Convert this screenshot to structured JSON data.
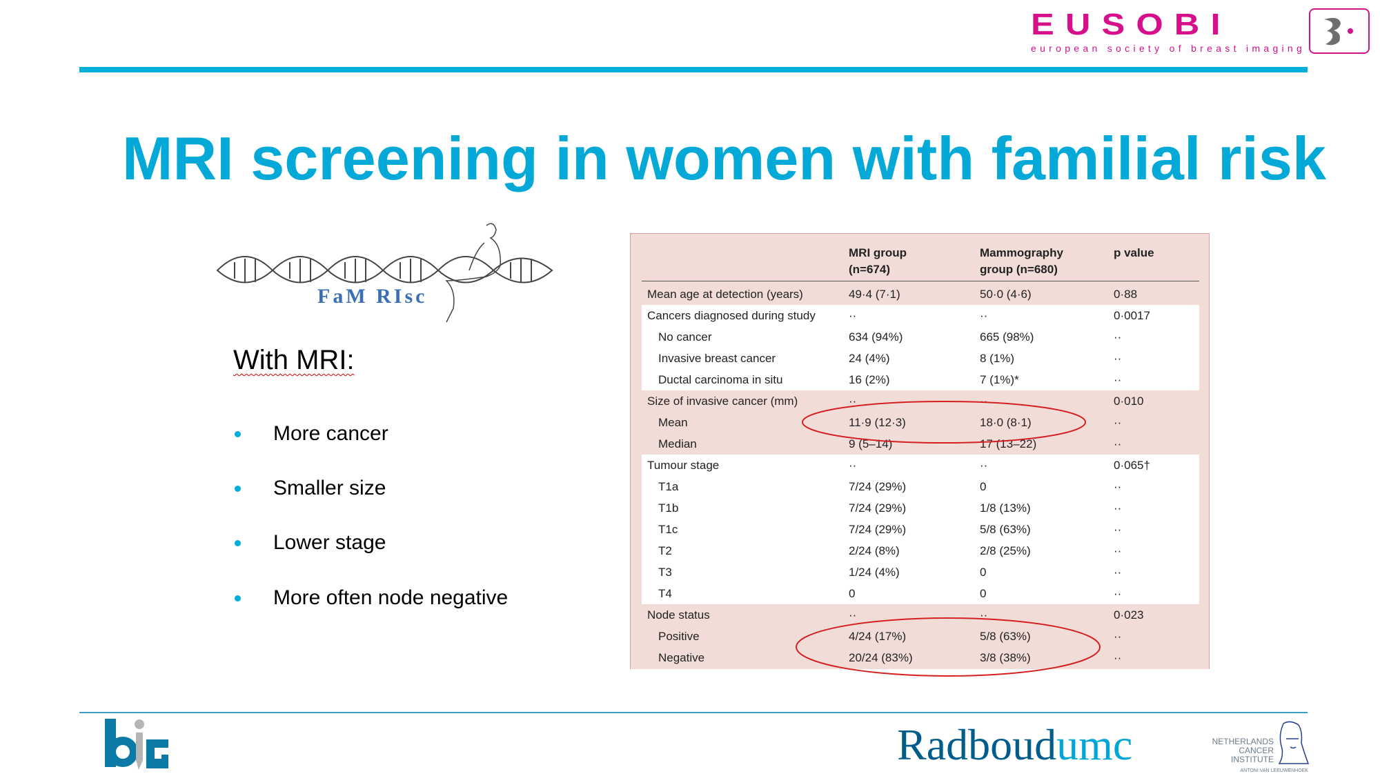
{
  "header": {
    "logo_text": "EUSOBI",
    "logo_subtitle": "european society of breast imaging",
    "title": "MRI screening in women with familial risk"
  },
  "left": {
    "study_logo_text": "FaM RIsc",
    "heading": "With MRI:",
    "bullets": [
      "More cancer",
      "Smaller size",
      "Lower stage",
      "More often node negative"
    ]
  },
  "table": {
    "headers": [
      "",
      "MRI group (n=674)",
      "Mammography group (n=680)",
      "p value"
    ],
    "header_lines": [
      [
        "MRI group",
        "(n=674)"
      ],
      [
        "Mammography",
        "group (n=680)"
      ],
      [
        "p value"
      ]
    ],
    "rows": [
      {
        "label": "Mean age at detection (years)",
        "mri": "49·4 (7·1)",
        "mammo": "50·0 (4·6)",
        "p": "0·88",
        "sub": false,
        "white": false
      },
      {
        "label": "Cancers diagnosed during study",
        "mri": "··",
        "mammo": "··",
        "p": "0·0017",
        "sub": false,
        "white": true
      },
      {
        "label": "No cancer",
        "mri": "634 (94%)",
        "mammo": "665 (98%)",
        "p": "··",
        "sub": true,
        "white": true
      },
      {
        "label": "Invasive breast cancer",
        "mri": "24 (4%)",
        "mammo": "8 (1%)",
        "p": "··",
        "sub": true,
        "white": true
      },
      {
        "label": "Ductal carcinoma in situ",
        "mri": "16 (2%)",
        "mammo": "7 (1%)*",
        "p": "··",
        "sub": true,
        "white": true
      },
      {
        "label": "Size of invasive cancer (mm)",
        "mri": "··",
        "mammo": "··",
        "p": "0·010",
        "sub": false,
        "white": false
      },
      {
        "label": "Mean",
        "mri": "11·9 (12·3)",
        "mammo": "18·0 (8·1)",
        "p": "··",
        "sub": true,
        "white": false
      },
      {
        "label": "Median",
        "mri": "9 (5–14)",
        "mammo": "17 (13–22)",
        "p": "··",
        "sub": true,
        "white": false
      },
      {
        "label": "Tumour stage",
        "mri": "··",
        "mammo": "··",
        "p": "0·065†",
        "sub": false,
        "white": true
      },
      {
        "label": "T1a",
        "mri": "7/24 (29%)",
        "mammo": "0",
        "p": "··",
        "sub": true,
        "white": true
      },
      {
        "label": "T1b",
        "mri": "7/24 (29%)",
        "mammo": "1/8 (13%)",
        "p": "··",
        "sub": true,
        "white": true
      },
      {
        "label": "T1c",
        "mri": "7/24 (29%)",
        "mammo": "5/8 (63%)",
        "p": "··",
        "sub": true,
        "white": true
      },
      {
        "label": "T2",
        "mri": "2/24 (8%)",
        "mammo": "2/8 (25%)",
        "p": "··",
        "sub": true,
        "white": true
      },
      {
        "label": "T3",
        "mri": "1/24 (4%)",
        "mammo": "0",
        "p": "··",
        "sub": true,
        "white": true
      },
      {
        "label": "T4",
        "mri": "0",
        "mammo": "0",
        "p": "··",
        "sub": true,
        "white": true
      },
      {
        "label": "Node status",
        "mri": "··",
        "mammo": "··",
        "p": "0·023",
        "sub": false,
        "white": false
      },
      {
        "label": "Positive",
        "mri": "4/24 (17%)",
        "mammo": "5/8 (63%)",
        "p": "··",
        "sub": true,
        "white": false
      },
      {
        "label": "Negative",
        "mri": "20/24 (83%)",
        "mammo": "3/8 (38%)",
        "p": "··",
        "sub": true,
        "white": false
      }
    ],
    "highlighted_rows": [
      "Mean",
      "Positive / Negative"
    ]
  },
  "footer": {
    "logo_big": "big",
    "logo_radboud_part1": "Radboud",
    "logo_radboud_part2": "umc",
    "logo_nki_lines": [
      "NETHERLANDS",
      "CANCER",
      "INSTITUTE"
    ],
    "logo_nki_sub": "ANTONI VAN LEEUWENHOEK"
  },
  "colors": {
    "accent": "#00aedb",
    "eusobi": "#d6108a",
    "table_bg": "#f2dcd8",
    "highlight": "#d42020",
    "radboud_dark": "#005c8a"
  }
}
